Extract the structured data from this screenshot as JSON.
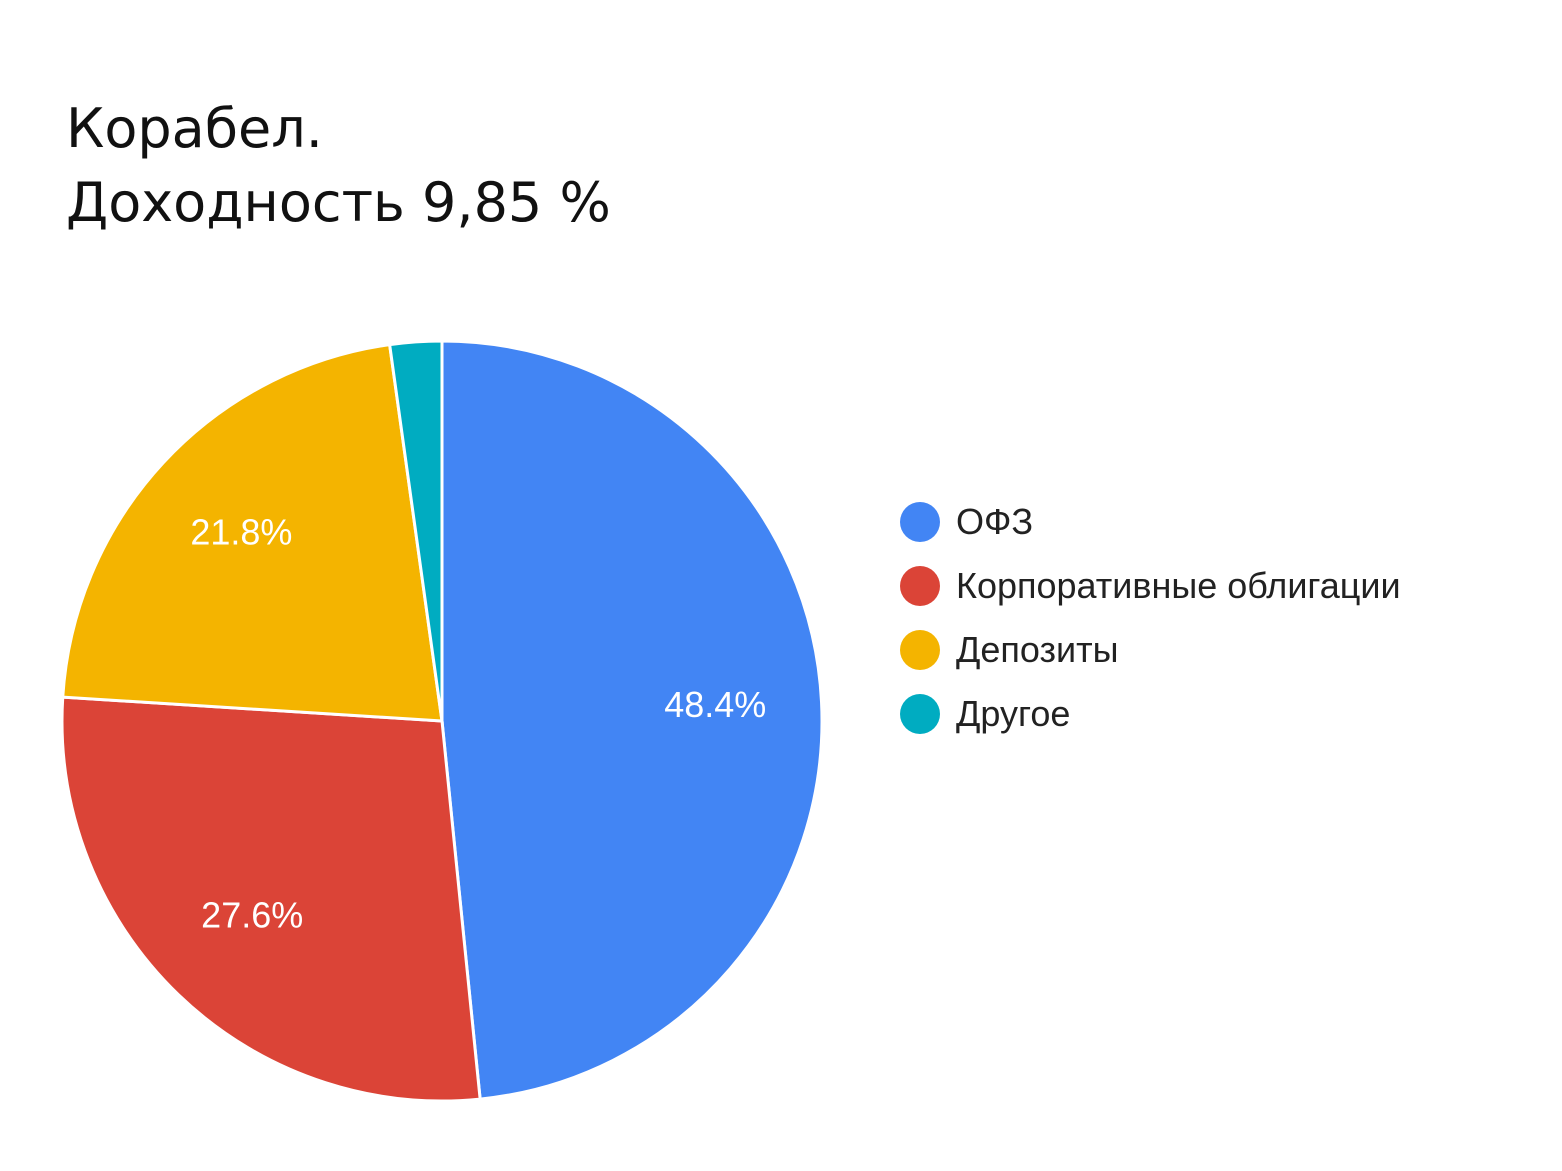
{
  "title": {
    "line1": "Корабел.",
    "line2_prefix": "Доходность ",
    "line2_value": "9,85 %"
  },
  "chart_data": {
    "type": "pie",
    "title": "Корабел. Доходность 9,85 %",
    "categories": [
      "ОФЗ",
      "Корпоративные облигации",
      "Депозиты",
      "Другое"
    ],
    "values": [
      48.4,
      27.6,
      21.8,
      2.2
    ],
    "value_labels": [
      "48.4%",
      "27.6%",
      "21.8%",
      ""
    ],
    "colors": [
      "#4285f4",
      "#db4437",
      "#f4b400",
      "#00acc1"
    ],
    "start_angle_deg": 0,
    "direction": "clockwise",
    "legend_position": "right"
  }
}
